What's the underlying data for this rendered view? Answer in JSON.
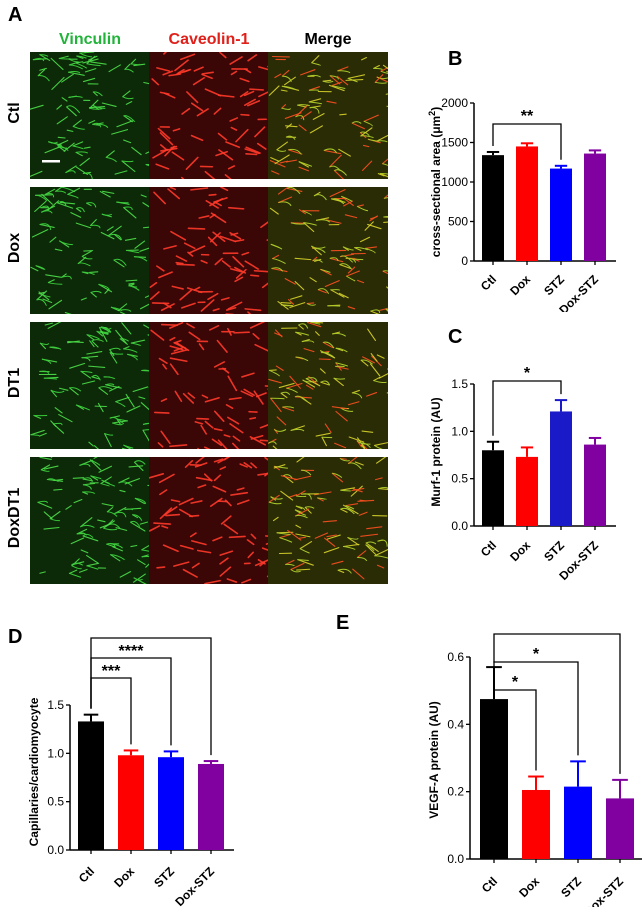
{
  "panels": {
    "A": "A",
    "B": "B",
    "C": "C",
    "D": "D",
    "E": "E"
  },
  "micrographs": {
    "columns": [
      {
        "label": "Vinculin",
        "color": "#22b33a"
      },
      {
        "label": "Caveolin-1",
        "color": "#e0201a"
      },
      {
        "label": "Merge",
        "color": "#000000"
      }
    ],
    "rows": [
      "Ctl",
      "Dox",
      "DT1",
      "DoxDT1"
    ]
  },
  "colors": {
    "Ctl": "#000000",
    "Dox": "#ff0000",
    "STZ": "#0000ff",
    "Dox-STZ": "#8000a0",
    "STZ_C": "#1a1ac8"
  },
  "chart_data": [
    {
      "id": "B",
      "type": "bar",
      "categories": [
        "Ctl",
        "Dox",
        "STZ",
        "Dox-STZ"
      ],
      "values": [
        1340,
        1450,
        1170,
        1360
      ],
      "errors": [
        40,
        40,
        35,
        40
      ],
      "ylabel": "cross-sectional area (μm²)",
      "ylim": [
        0,
        2000
      ],
      "yticks": [
        "0",
        "500",
        "1000",
        "1500",
        "2000"
      ],
      "yticks_values": [
        0,
        500,
        1000,
        1500,
        2000
      ],
      "annotations": [
        {
          "from": 0,
          "to": 2,
          "label": "**"
        }
      ]
    },
    {
      "id": "C",
      "type": "bar",
      "categories": [
        "Ctl",
        "Dox",
        "STZ",
        "Dox-STZ"
      ],
      "values": [
        0.8,
        0.73,
        1.21,
        0.86
      ],
      "errors": [
        0.09,
        0.1,
        0.12,
        0.07
      ],
      "ylabel": "Murf-1 protein (AU)",
      "ylim": [
        0,
        1.5
      ],
      "yticks": [
        "0.0",
        "0.5",
        "1.0",
        "1.5"
      ],
      "yticks_values": [
        0,
        0.5,
        1.0,
        1.5
      ],
      "annotations": [
        {
          "from": 0,
          "to": 2,
          "label": "*"
        }
      ]
    },
    {
      "id": "D",
      "type": "bar",
      "categories": [
        "Ctl",
        "Dox",
        "STZ",
        "Dox-STZ"
      ],
      "values": [
        1.33,
        0.98,
        0.96,
        0.89
      ],
      "errors": [
        0.07,
        0.05,
        0.06,
        0.03
      ],
      "ylabel": "Capillaries/cardiomyocyte",
      "ylim": [
        0,
        1.5
      ],
      "yticks": [
        "0.0",
        "0.5",
        "1.0",
        "1.5"
      ],
      "yticks_values": [
        0,
        0.5,
        1.0,
        1.5
      ],
      "annotations": [
        {
          "from": 0,
          "to": 1,
          "label": "***"
        },
        {
          "from": 0,
          "to": 2,
          "label": "****"
        },
        {
          "from": 0,
          "to": 3,
          "label": "****"
        }
      ]
    },
    {
      "id": "E",
      "type": "bar",
      "categories": [
        "Ctl",
        "Dox",
        "STZ",
        "Dox-STZ"
      ],
      "values": [
        0.475,
        0.205,
        0.215,
        0.18
      ],
      "errors": [
        0.095,
        0.04,
        0.075,
        0.055
      ],
      "ylabel": "VEGF-A protein (AU)",
      "ylim": [
        0,
        0.6
      ],
      "yticks": [
        "0.0",
        "0.2",
        "0.4",
        "0.6"
      ],
      "yticks_values": [
        0,
        0.2,
        0.4,
        0.6
      ],
      "annotations": [
        {
          "from": 0,
          "to": 1,
          "label": "*"
        },
        {
          "from": 0,
          "to": 2,
          "label": "*"
        },
        {
          "from": 0,
          "to": 3,
          "label": "*"
        }
      ]
    }
  ]
}
